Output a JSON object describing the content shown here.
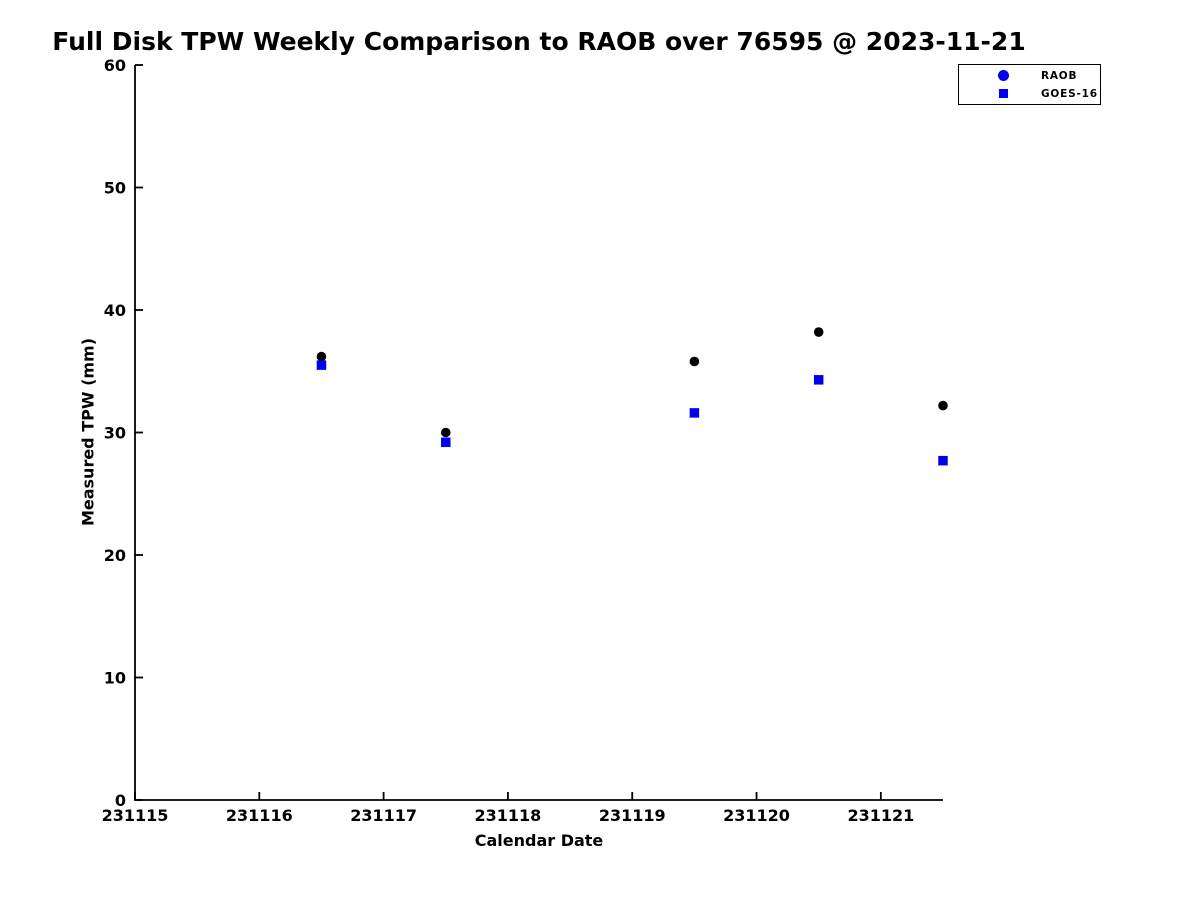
{
  "chart_data": {
    "type": "scatter",
    "title": "Full Disk TPW Weekly Comparison to RAOB over 76595 @ 2023-11-21",
    "xlabel": "Calendar Date",
    "ylabel": "Measured TPW (mm)",
    "xlim": [
      231115,
      231121.5
    ],
    "ylim": [
      0,
      60
    ],
    "xticks": [
      231115,
      231116,
      231117,
      231118,
      231119,
      231120,
      231121
    ],
    "yticks": [
      0,
      10,
      20,
      30,
      40,
      50,
      60
    ],
    "grid": false,
    "legend_position": "top-right",
    "axis_color": "#000000",
    "x": [
      231116.5,
      231117.5,
      231119.5,
      231120.5,
      231121.5
    ],
    "series": [
      {
        "name": "RAOB",
        "marker": "circle",
        "color": "#000000",
        "legend_color": "#0000ee",
        "values": [
          36.2,
          30.0,
          35.8,
          38.2,
          32.2
        ]
      },
      {
        "name": "GOES-16",
        "marker": "square",
        "color": "#0000ee",
        "legend_color": "#0000ee",
        "values": [
          35.5,
          29.2,
          31.6,
          34.3,
          27.7
        ]
      }
    ]
  }
}
